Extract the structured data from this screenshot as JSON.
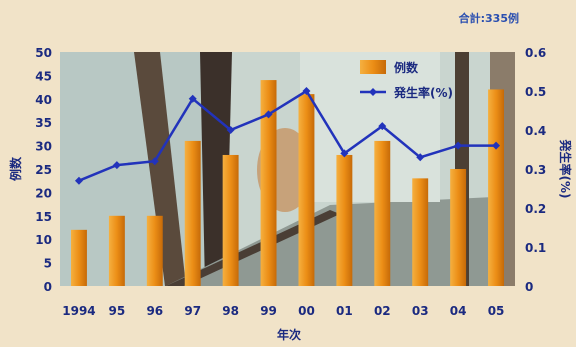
{
  "chart_data": {
    "type": "bar",
    "title": "",
    "total_label": "合計:335例",
    "xlabel": "年次",
    "ylabel": "例数",
    "ylabel_right": "発生率(%)",
    "categories": [
      "1994",
      "95",
      "96",
      "97",
      "98",
      "99",
      "00",
      "01",
      "02",
      "03",
      "04",
      "05"
    ],
    "ylim": [
      0,
      50
    ],
    "yticks": [
      0,
      5,
      10,
      15,
      20,
      25,
      30,
      35,
      40,
      45,
      50
    ],
    "ylim_right": [
      0,
      0.6
    ],
    "yticks_right": [
      "0",
      "0.1",
      "0.2",
      "0.3",
      "0.4",
      "0.5",
      "0.6"
    ],
    "series": [
      {
        "name": "例数",
        "type": "bar",
        "axis": "left",
        "color": "#e98a12",
        "values": [
          12,
          15,
          15,
          31,
          28,
          44,
          41,
          28,
          31,
          23,
          25,
          42
        ]
      },
      {
        "name": "発生率(%)",
        "type": "line",
        "axis": "right",
        "color": "#2233bb",
        "values": [
          0.27,
          0.31,
          0.32,
          0.48,
          0.4,
          0.44,
          0.5,
          0.34,
          0.41,
          0.33,
          0.36,
          0.36
        ]
      }
    ],
    "legend_position": "top-right",
    "background_photo": "photo-backdrop",
    "grid": false
  }
}
